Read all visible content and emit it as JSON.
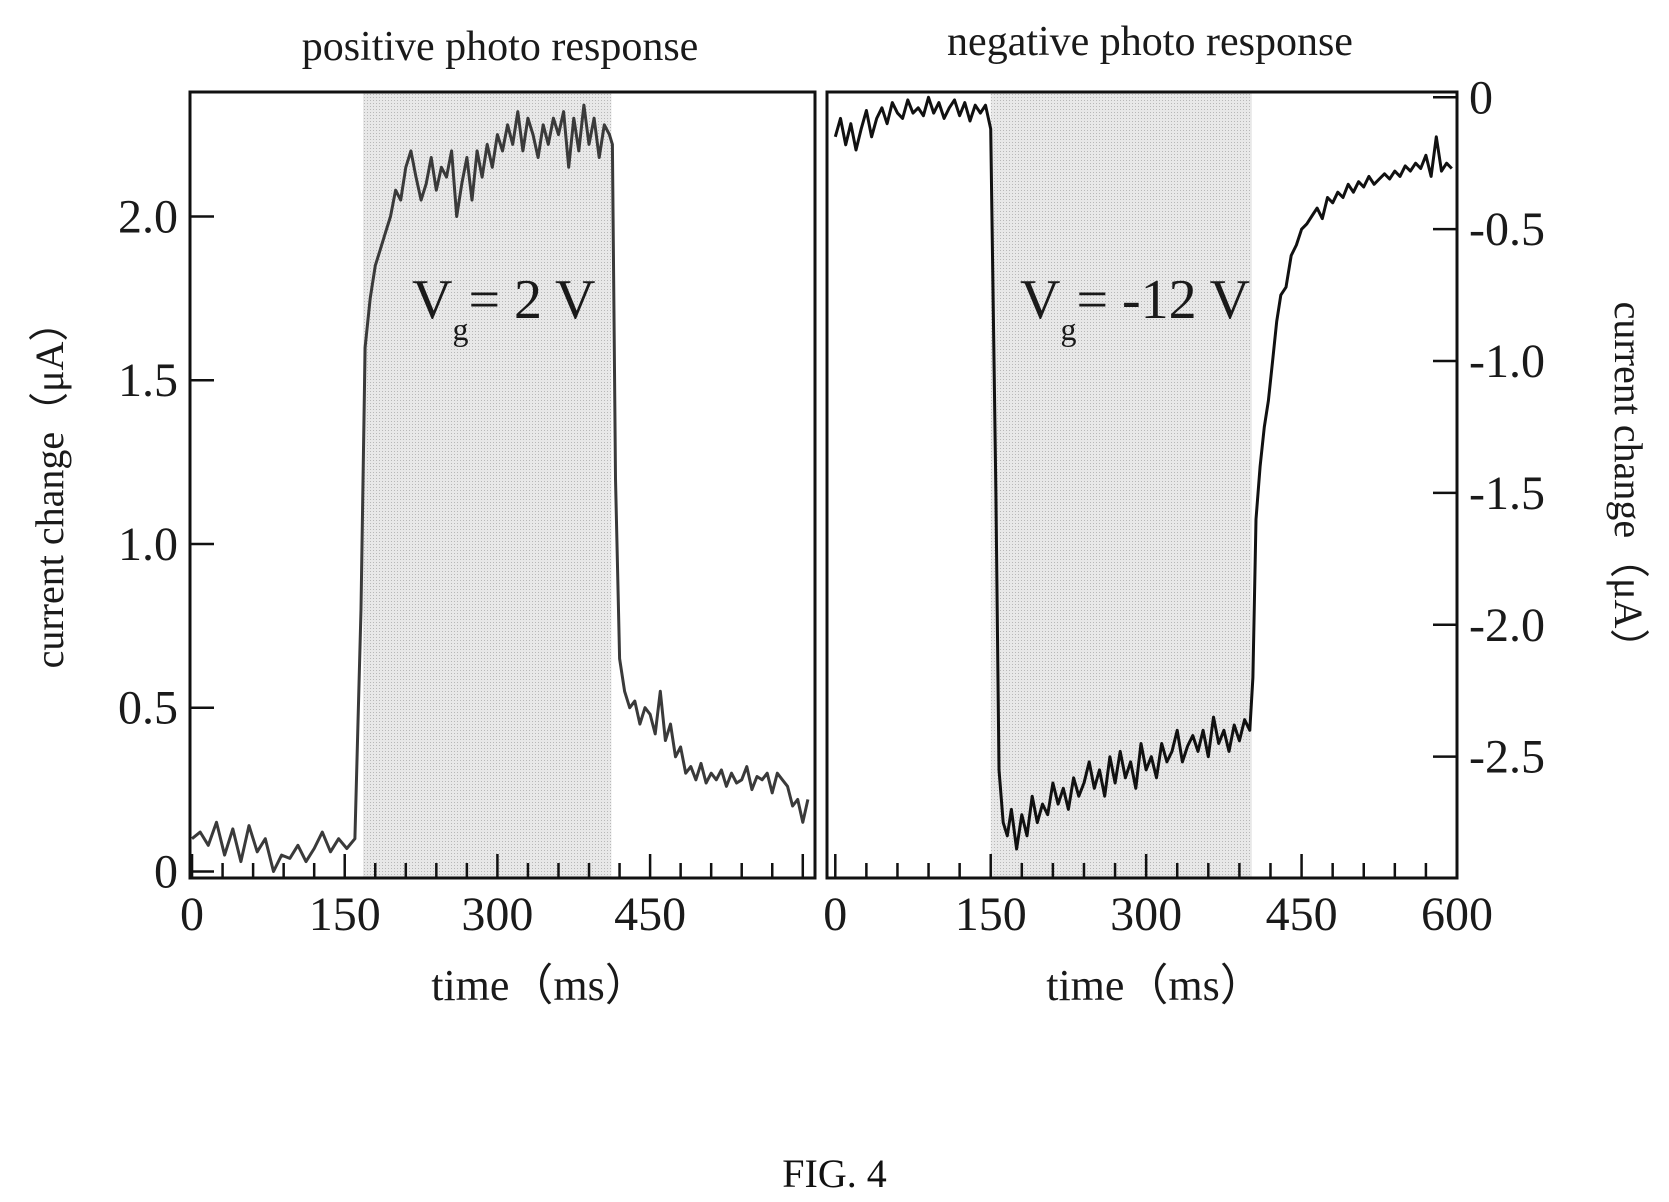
{
  "figure": {
    "caption": "FIG. 4"
  },
  "chart_data": [
    {
      "type": "line",
      "title": "positive photo response",
      "xlabel": "time（ms）",
      "ylabel": "current change（μA）",
      "xlim": [
        -2,
        612
      ],
      "ylim": [
        -0.02,
        2.38
      ],
      "xticks": [
        0,
        150,
        300,
        450
      ],
      "xtick_labels": [
        "0",
        "150",
        "300",
        "450"
      ],
      "yticks": [
        0,
        0.5,
        1.0,
        1.5,
        2.0
      ],
      "ytick_labels": [
        "0",
        "0.5",
        "1.0",
        "1.5",
        "2.0"
      ],
      "y_axis_side": "left",
      "shaded_interval": [
        168,
        412
      ],
      "annotation": {
        "main": "V",
        "sub": "g",
        "rest": "= 2 V"
      },
      "color": "#3a3a3a",
      "series": [
        {
          "x": [
            0,
            8,
            16,
            24,
            32,
            40,
            48,
            56,
            64,
            72,
            80,
            88,
            96,
            104,
            112,
            120,
            128,
            136,
            144,
            152,
            160,
            166,
            170,
            175,
            180,
            185,
            190,
            195,
            200,
            205,
            210,
            215,
            220,
            225,
            230,
            235,
            240,
            245,
            250,
            255,
            260,
            265,
            270,
            275,
            280,
            285,
            290,
            295,
            300,
            305,
            310,
            315,
            320,
            325,
            330,
            335,
            340,
            345,
            350,
            355,
            360,
            365,
            370,
            375,
            380,
            385,
            390,
            395,
            400,
            405,
            410,
            413,
            416,
            420,
            425,
            430,
            435,
            440,
            445,
            450,
            455,
            460,
            465,
            470,
            475,
            480,
            485,
            490,
            495,
            500,
            505,
            510,
            515,
            520,
            525,
            530,
            535,
            540,
            545,
            550,
            555,
            560,
            565,
            570,
            575,
            580,
            585,
            590,
            595,
            600,
            605
          ],
          "y": [
            0.1,
            0.12,
            0.08,
            0.15,
            0.05,
            0.13,
            0.03,
            0.14,
            0.06,
            0.1,
            0.0,
            0.05,
            0.04,
            0.08,
            0.03,
            0.07,
            0.12,
            0.06,
            0.1,
            0.07,
            0.1,
            0.8,
            1.6,
            1.75,
            1.85,
            1.9,
            1.95,
            2.0,
            2.08,
            2.05,
            2.15,
            2.2,
            2.12,
            2.05,
            2.1,
            2.18,
            2.08,
            2.15,
            2.12,
            2.2,
            2.0,
            2.1,
            2.18,
            2.05,
            2.2,
            2.12,
            2.22,
            2.15,
            2.25,
            2.2,
            2.28,
            2.22,
            2.32,
            2.2,
            2.3,
            2.25,
            2.18,
            2.28,
            2.22,
            2.3,
            2.25,
            2.32,
            2.15,
            2.3,
            2.2,
            2.34,
            2.22,
            2.3,
            2.18,
            2.28,
            2.25,
            2.22,
            1.2,
            0.65,
            0.55,
            0.5,
            0.52,
            0.45,
            0.5,
            0.48,
            0.42,
            0.55,
            0.4,
            0.45,
            0.35,
            0.38,
            0.3,
            0.32,
            0.28,
            0.33,
            0.27,
            0.3,
            0.28,
            0.31,
            0.26,
            0.3,
            0.27,
            0.28,
            0.32,
            0.25,
            0.29,
            0.28,
            0.3,
            0.24,
            0.3,
            0.28,
            0.26,
            0.2,
            0.22,
            0.15,
            0.22
          ]
        }
      ]
    },
    {
      "type": "line",
      "title": "negative photo response",
      "xlabel": "time（ms）",
      "ylabel": "current change（μA）",
      "xlim": [
        -8,
        600
      ],
      "ylim": [
        -2.96,
        0.02
      ],
      "xticks": [
        0,
        150,
        300,
        450,
        600
      ],
      "xtick_labels": [
        "0",
        "150",
        "300",
        "450",
        "600"
      ],
      "yticks": [
        0,
        -0.5,
        -1.0,
        -1.5,
        -2.0,
        -2.5
      ],
      "ytick_labels": [
        "0",
        "-0.5",
        "-1.0",
        "-1.5",
        "-2.0",
        "-2.5"
      ],
      "y_axis_side": "right",
      "shaded_interval": [
        150,
        402
      ],
      "annotation": {
        "main": "V",
        "sub": "g",
        "rest": "= -12 V"
      },
      "color": "#111111",
      "series": [
        {
          "x": [
            0,
            5,
            10,
            15,
            20,
            25,
            30,
            35,
            40,
            45,
            50,
            55,
            60,
            65,
            70,
            75,
            80,
            85,
            90,
            95,
            100,
            105,
            110,
            115,
            120,
            125,
            130,
            135,
            140,
            145,
            150,
            155,
            158,
            162,
            166,
            170,
            175,
            180,
            185,
            190,
            195,
            200,
            205,
            210,
            215,
            220,
            225,
            230,
            235,
            240,
            245,
            250,
            255,
            260,
            265,
            270,
            275,
            280,
            285,
            290,
            295,
            300,
            305,
            310,
            315,
            320,
            325,
            330,
            335,
            340,
            345,
            350,
            355,
            360,
            365,
            370,
            375,
            380,
            385,
            390,
            395,
            400,
            403,
            406,
            410,
            414,
            418,
            422,
            426,
            430,
            435,
            440,
            445,
            450,
            455,
            460,
            465,
            470,
            475,
            480,
            485,
            490,
            495,
            500,
            505,
            510,
            515,
            520,
            525,
            530,
            535,
            540,
            545,
            550,
            555,
            560,
            565,
            570,
            575,
            580,
            585,
            590,
            595
          ],
          "y": [
            -0.15,
            -0.08,
            -0.18,
            -0.1,
            -0.2,
            -0.12,
            -0.05,
            -0.15,
            -0.08,
            -0.04,
            -0.1,
            -0.02,
            -0.06,
            -0.08,
            -0.01,
            -0.06,
            -0.04,
            -0.07,
            0.0,
            -0.06,
            -0.02,
            -0.08,
            -0.04,
            -0.01,
            -0.07,
            -0.02,
            -0.09,
            -0.03,
            -0.06,
            -0.03,
            -0.12,
            -1.5,
            -2.55,
            -2.75,
            -2.8,
            -2.7,
            -2.85,
            -2.72,
            -2.8,
            -2.65,
            -2.75,
            -2.68,
            -2.72,
            -2.6,
            -2.68,
            -2.62,
            -2.7,
            -2.58,
            -2.65,
            -2.6,
            -2.52,
            -2.62,
            -2.55,
            -2.65,
            -2.5,
            -2.6,
            -2.48,
            -2.58,
            -2.52,
            -2.62,
            -2.45,
            -2.55,
            -2.5,
            -2.58,
            -2.45,
            -2.52,
            -2.48,
            -2.4,
            -2.52,
            -2.46,
            -2.42,
            -2.48,
            -2.4,
            -2.5,
            -2.35,
            -2.45,
            -2.4,
            -2.48,
            -2.38,
            -2.44,
            -2.36,
            -2.4,
            -2.2,
            -1.6,
            -1.4,
            -1.25,
            -1.15,
            -1.0,
            -0.85,
            -0.75,
            -0.72,
            -0.6,
            -0.56,
            -0.5,
            -0.48,
            -0.45,
            -0.42,
            -0.46,
            -0.38,
            -0.4,
            -0.36,
            -0.38,
            -0.33,
            -0.36,
            -0.32,
            -0.34,
            -0.3,
            -0.33,
            -0.31,
            -0.29,
            -0.31,
            -0.28,
            -0.3,
            -0.26,
            -0.28,
            -0.25,
            -0.27,
            -0.22,
            -0.3,
            -0.15,
            -0.28,
            -0.25,
            -0.27
          ]
        }
      ]
    }
  ]
}
